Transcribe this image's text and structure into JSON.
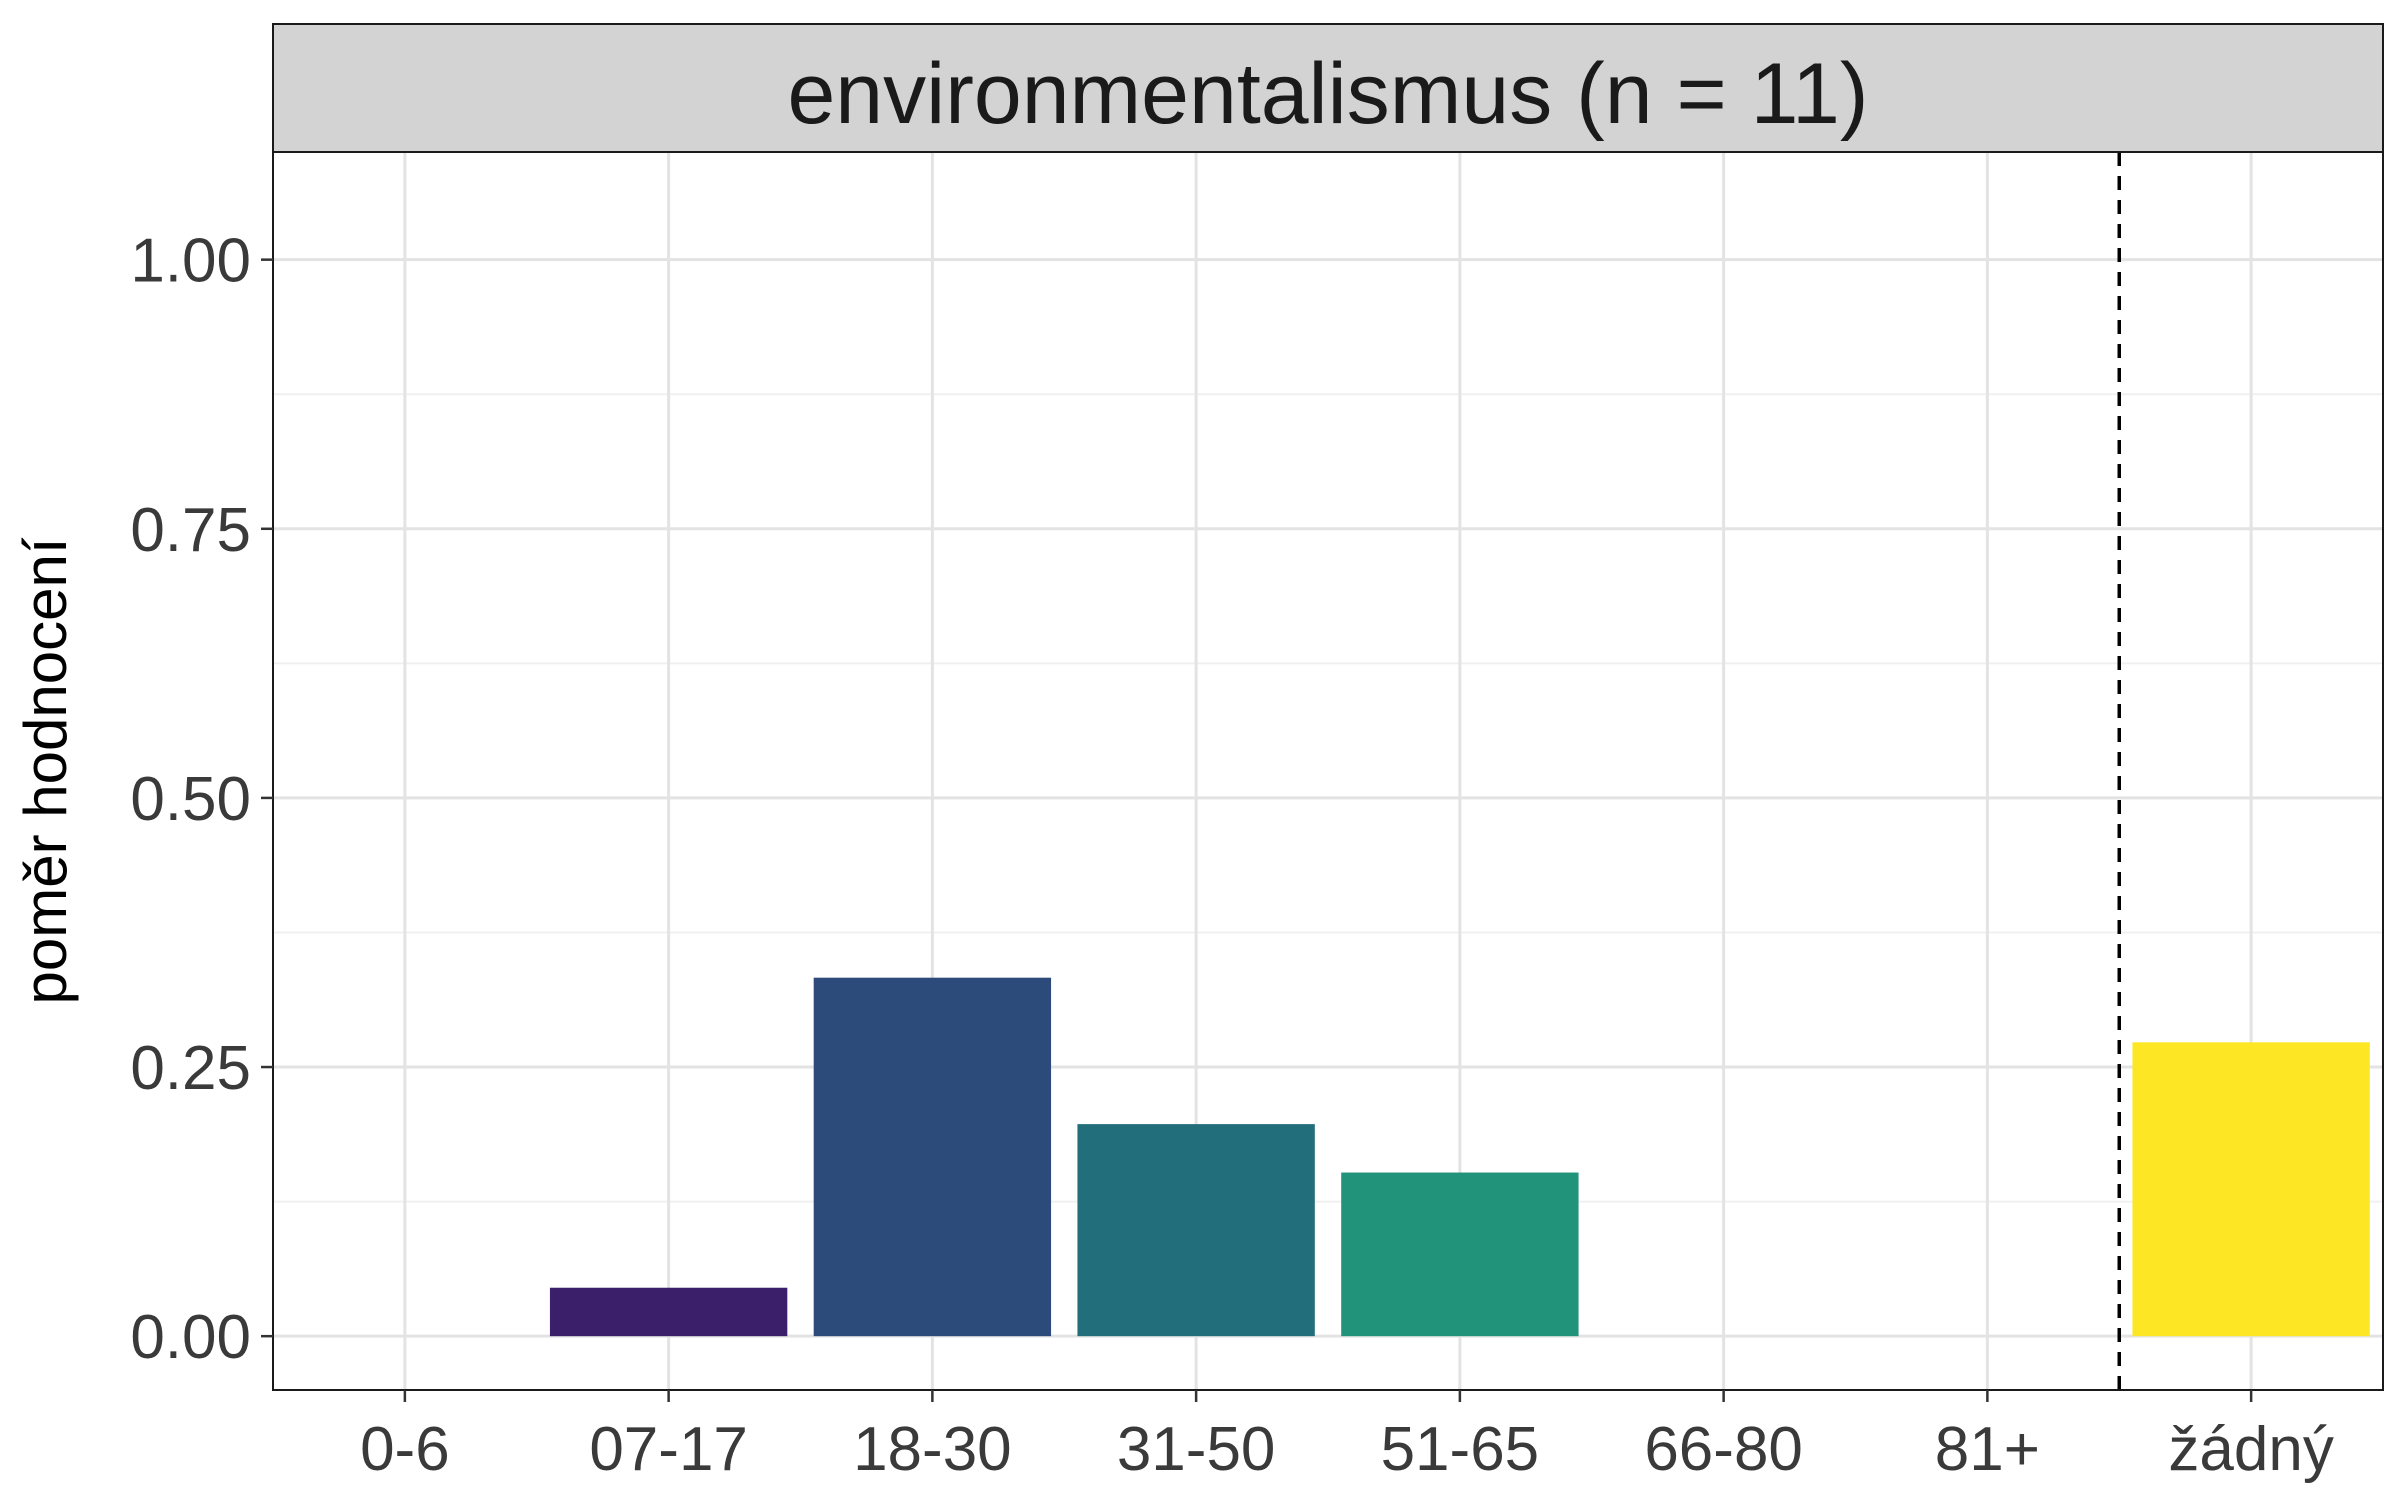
{
  "chart_data": {
    "type": "bar",
    "title": "environmentalismus (n = 11)",
    "ylabel": "poměr hodnocení",
    "xlabel": "",
    "categories": [
      "0-6",
      "07-17",
      "18-30",
      "31-50",
      "51-65",
      "66-80",
      "81+",
      "žádný"
    ],
    "values": [
      0,
      0.045,
      0.333,
      0.197,
      0.152,
      0,
      0,
      0.273
    ],
    "bar_colors": [
      "#440154",
      "#3b1f6b",
      "#2c4b7a",
      "#226f7b",
      "#20937a",
      "#5ec962",
      "#a8db34",
      "#fde725"
    ],
    "ylim": [
      -0.05,
      1.1
    ],
    "yticks": [
      0.0,
      0.25,
      0.5,
      0.75,
      1.0
    ],
    "ytick_labels": [
      "0.00",
      "0.25",
      "0.50",
      "0.75",
      "1.00"
    ],
    "grid": true,
    "reference_line": {
      "style": "dashed",
      "between": [
        "81+",
        "žádný"
      ]
    }
  }
}
